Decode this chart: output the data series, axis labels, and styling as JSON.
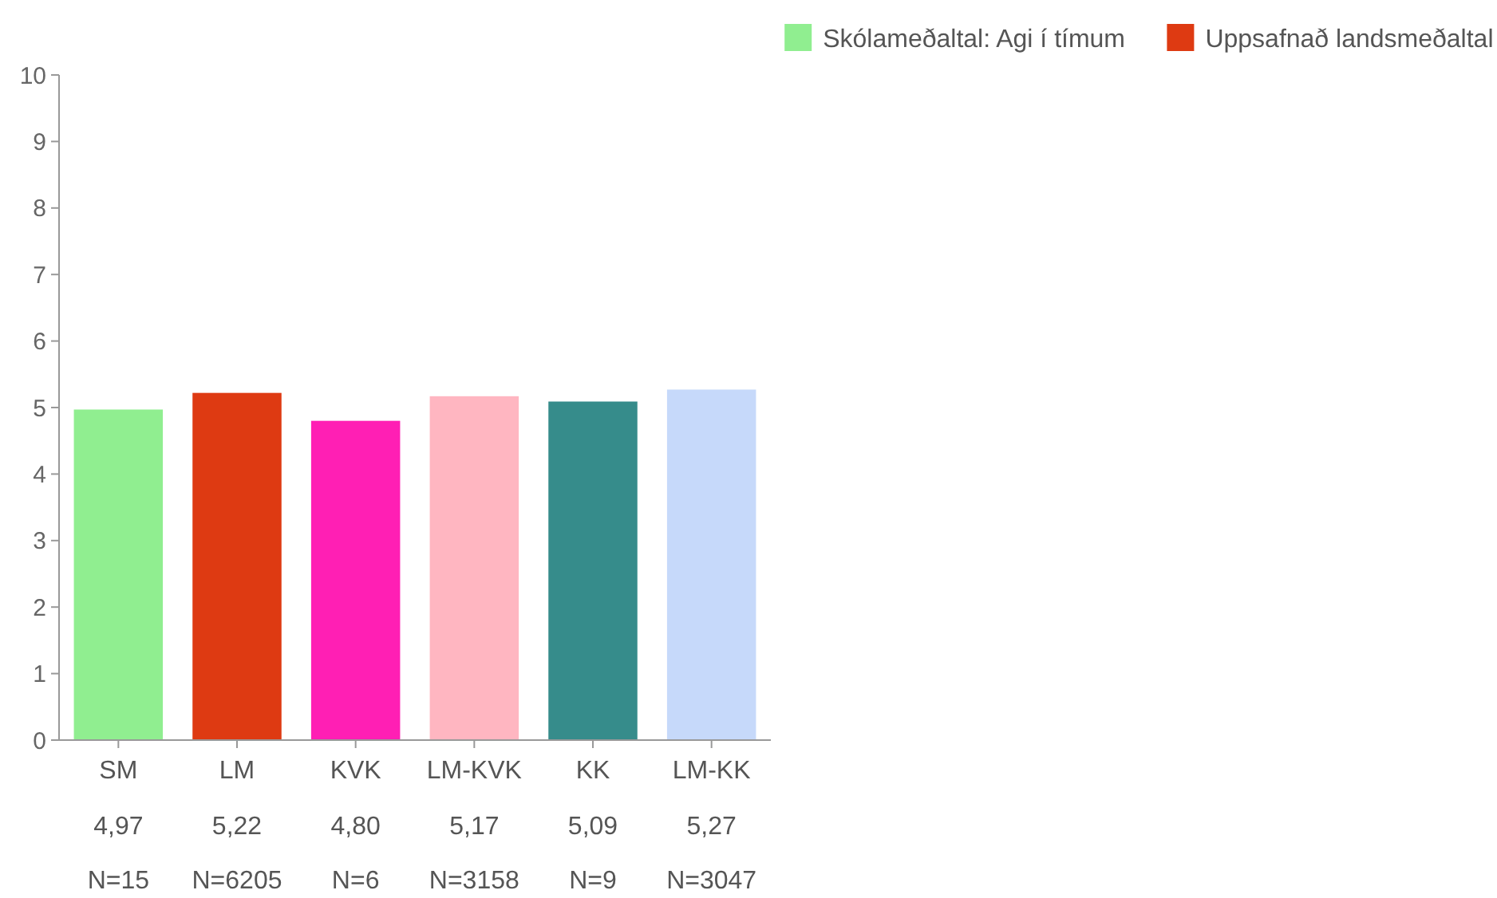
{
  "chart_data": {
    "type": "bar",
    "categories": [
      "SM",
      "LM",
      "KVK",
      "LM-KVK",
      "KK",
      "LM-KK"
    ],
    "series": [
      {
        "name": "Skólameðaltal: Agi í tímum",
        "color": "#90ee90",
        "colors": [
          "#90ee90",
          null,
          "#ff1fb4",
          null,
          "#368c8b",
          null
        ],
        "values": [
          4.97,
          null,
          4.8,
          null,
          5.09,
          null
        ],
        "value_labels": [
          "4,97",
          null,
          "4,80",
          null,
          "5,09",
          null
        ]
      },
      {
        "name": "Uppsafnað landsmeðaltal",
        "color": "#de3a12",
        "colors": [
          null,
          "#de3a12",
          null,
          "#ffb6c1",
          null,
          "#c6d9fa"
        ],
        "values": [
          null,
          5.22,
          null,
          5.17,
          null,
          5.27
        ],
        "value_labels": [
          null,
          "5,22",
          null,
          "5,17",
          null,
          "5,27"
        ]
      }
    ],
    "annotations": [
      "N=15",
      "N=6205",
      "N=6",
      "N=3158",
      "N=9",
      "N=3047"
    ],
    "ylim": [
      0,
      10
    ],
    "yticks": [
      0,
      1,
      2,
      3,
      4,
      5,
      6,
      7,
      8,
      9,
      10
    ],
    "grid": false,
    "legend": "top right"
  }
}
